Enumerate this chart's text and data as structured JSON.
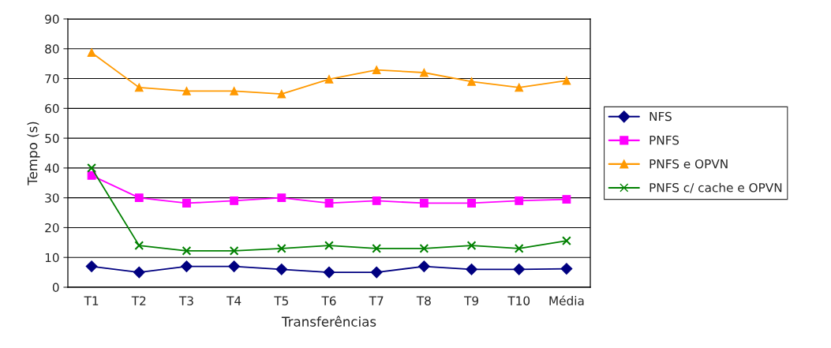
{
  "chart_data": {
    "type": "line",
    "xlabel": "Transferências",
    "ylabel": "Tempo (s)",
    "categories": [
      "T1",
      "T2",
      "T3",
      "T4",
      "T5",
      "T6",
      "T7",
      "T8",
      "T9",
      "T10",
      "Média"
    ],
    "series": [
      {
        "name": "NFS",
        "color": "#000080",
        "marker": "diamond",
        "values": [
          7,
          5,
          7,
          7,
          6,
          5,
          5,
          7,
          6,
          6,
          6.2
        ]
      },
      {
        "name": "PNFS",
        "color": "#ff00ff",
        "marker": "square",
        "values": [
          37.5,
          30,
          28.2,
          29,
          30,
          28.2,
          29,
          28.2,
          28.2,
          29,
          29.5
        ]
      },
      {
        "name": "PNFS e OPVN",
        "color": "#ff9900",
        "marker": "triangle",
        "values": [
          78.7,
          67,
          65.8,
          65.8,
          64.8,
          69.8,
          72.9,
          72,
          69,
          67,
          69.3
        ]
      },
      {
        "name": "PNFS c/ cache e OPVN",
        "color": "#008000",
        "marker": "cross",
        "values": [
          40,
          14,
          12.2,
          12.2,
          13,
          14,
          13,
          13,
          14,
          13,
          15.6
        ]
      }
    ],
    "ylim": [
      0,
      90
    ],
    "yticks": [
      0,
      10,
      20,
      30,
      40,
      50,
      60,
      70,
      80,
      90
    ],
    "grid": "y",
    "legend": "right"
  }
}
